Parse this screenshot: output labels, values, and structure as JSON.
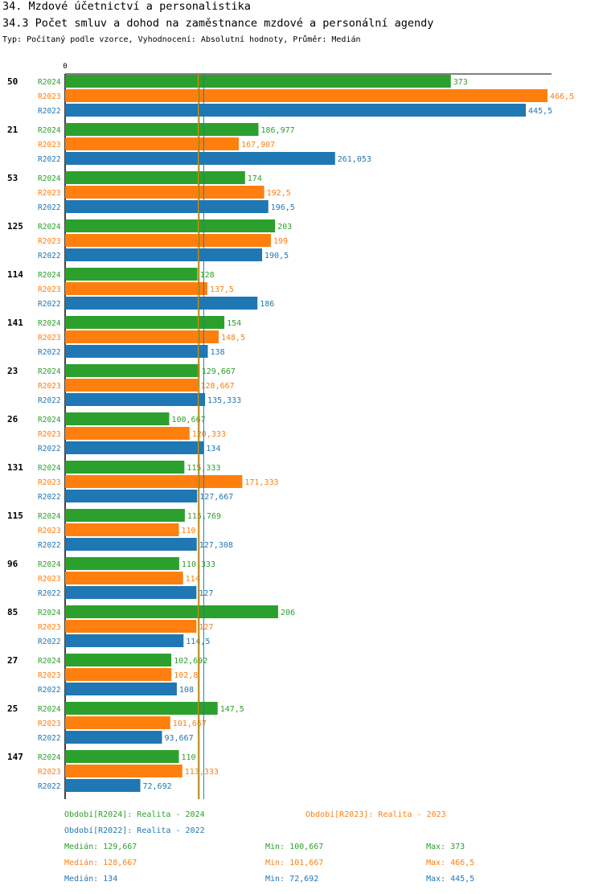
{
  "header": {
    "title": "34. Mzdové účetnictví a personalistika",
    "subtitle": "34.3 Počet smluv a dohod na zaměstnance mzdové a personální agendy",
    "type_line": "Typ: Počítaný podle vzorce, Vyhodnocení: Absolutní hodnoty, Průměr: Medián"
  },
  "colors": {
    "R2024": "#2ca02c",
    "R2023": "#ff7f0e",
    "R2022": "#1f77b4"
  },
  "chart_data": {
    "type": "bar",
    "orientation": "horizontal",
    "title": "34.3 Počet smluv a dohod na zaměstnance mzdové a personální agendy",
    "x_tick_label": "0",
    "xlim": [
      0,
      466.5
    ],
    "categories": [
      "50",
      "21",
      "53",
      "125",
      "114",
      "141",
      "23",
      "26",
      "131",
      "115",
      "96",
      "85",
      "27",
      "25",
      "147"
    ],
    "series": [
      {
        "name": "R2024",
        "values": [
          373,
          186.977,
          174,
          203,
          128,
          154,
          129.667,
          100.667,
          115.333,
          115.769,
          110.333,
          206,
          102.692,
          147.5,
          110
        ],
        "labels": [
          "373",
          "186,977",
          "174",
          "203",
          "128",
          "154",
          "129,667",
          "100,667",
          "115,333",
          "115,769",
          "110,333",
          "206",
          "102,692",
          "147,5",
          "110"
        ]
      },
      {
        "name": "R2023",
        "values": [
          466.5,
          167.907,
          192.5,
          199,
          137.5,
          148.5,
          128.667,
          120.333,
          171.333,
          110,
          114,
          127,
          102.8,
          101.667,
          113.333
        ],
        "labels": [
          "466,5",
          "167,907",
          "192,5",
          "199",
          "137,5",
          "148,5",
          "128,667",
          "120,333",
          "171,333",
          "110",
          "114",
          "127",
          "102,8",
          "101,667",
          "113,333"
        ]
      },
      {
        "name": "R2022",
        "values": [
          445.5,
          261.053,
          196.5,
          190.5,
          186,
          138,
          135.333,
          134,
          127.667,
          127.308,
          127,
          114.5,
          108,
          93.667,
          72.692
        ],
        "labels": [
          "445,5",
          "261,053",
          "196,5",
          "190,5",
          "186",
          "138",
          "135,333",
          "134",
          "127,667",
          "127,308",
          "127",
          "114,5",
          "108",
          "93,667",
          "72,692"
        ]
      }
    ],
    "medians": {
      "R2024": 129.667,
      "R2023": 128.667,
      "R2022": 134
    }
  },
  "legend": {
    "r2024": "Období[R2024]: Realita - 2024",
    "r2023": "Období[R2023]: Realita - 2023",
    "r2022": "Období[R2022]: Realita - 2022"
  },
  "stats": [
    {
      "median": "Medián: 129,667",
      "min": "Min: 100,667",
      "max": "Max: 373"
    },
    {
      "median": "Medián: 128,667",
      "min": "Min: 101,667",
      "max": "Max: 466,5"
    },
    {
      "median": "Medián: 134",
      "min": "Min: 72,692",
      "max": "Max: 445,5"
    }
  ]
}
